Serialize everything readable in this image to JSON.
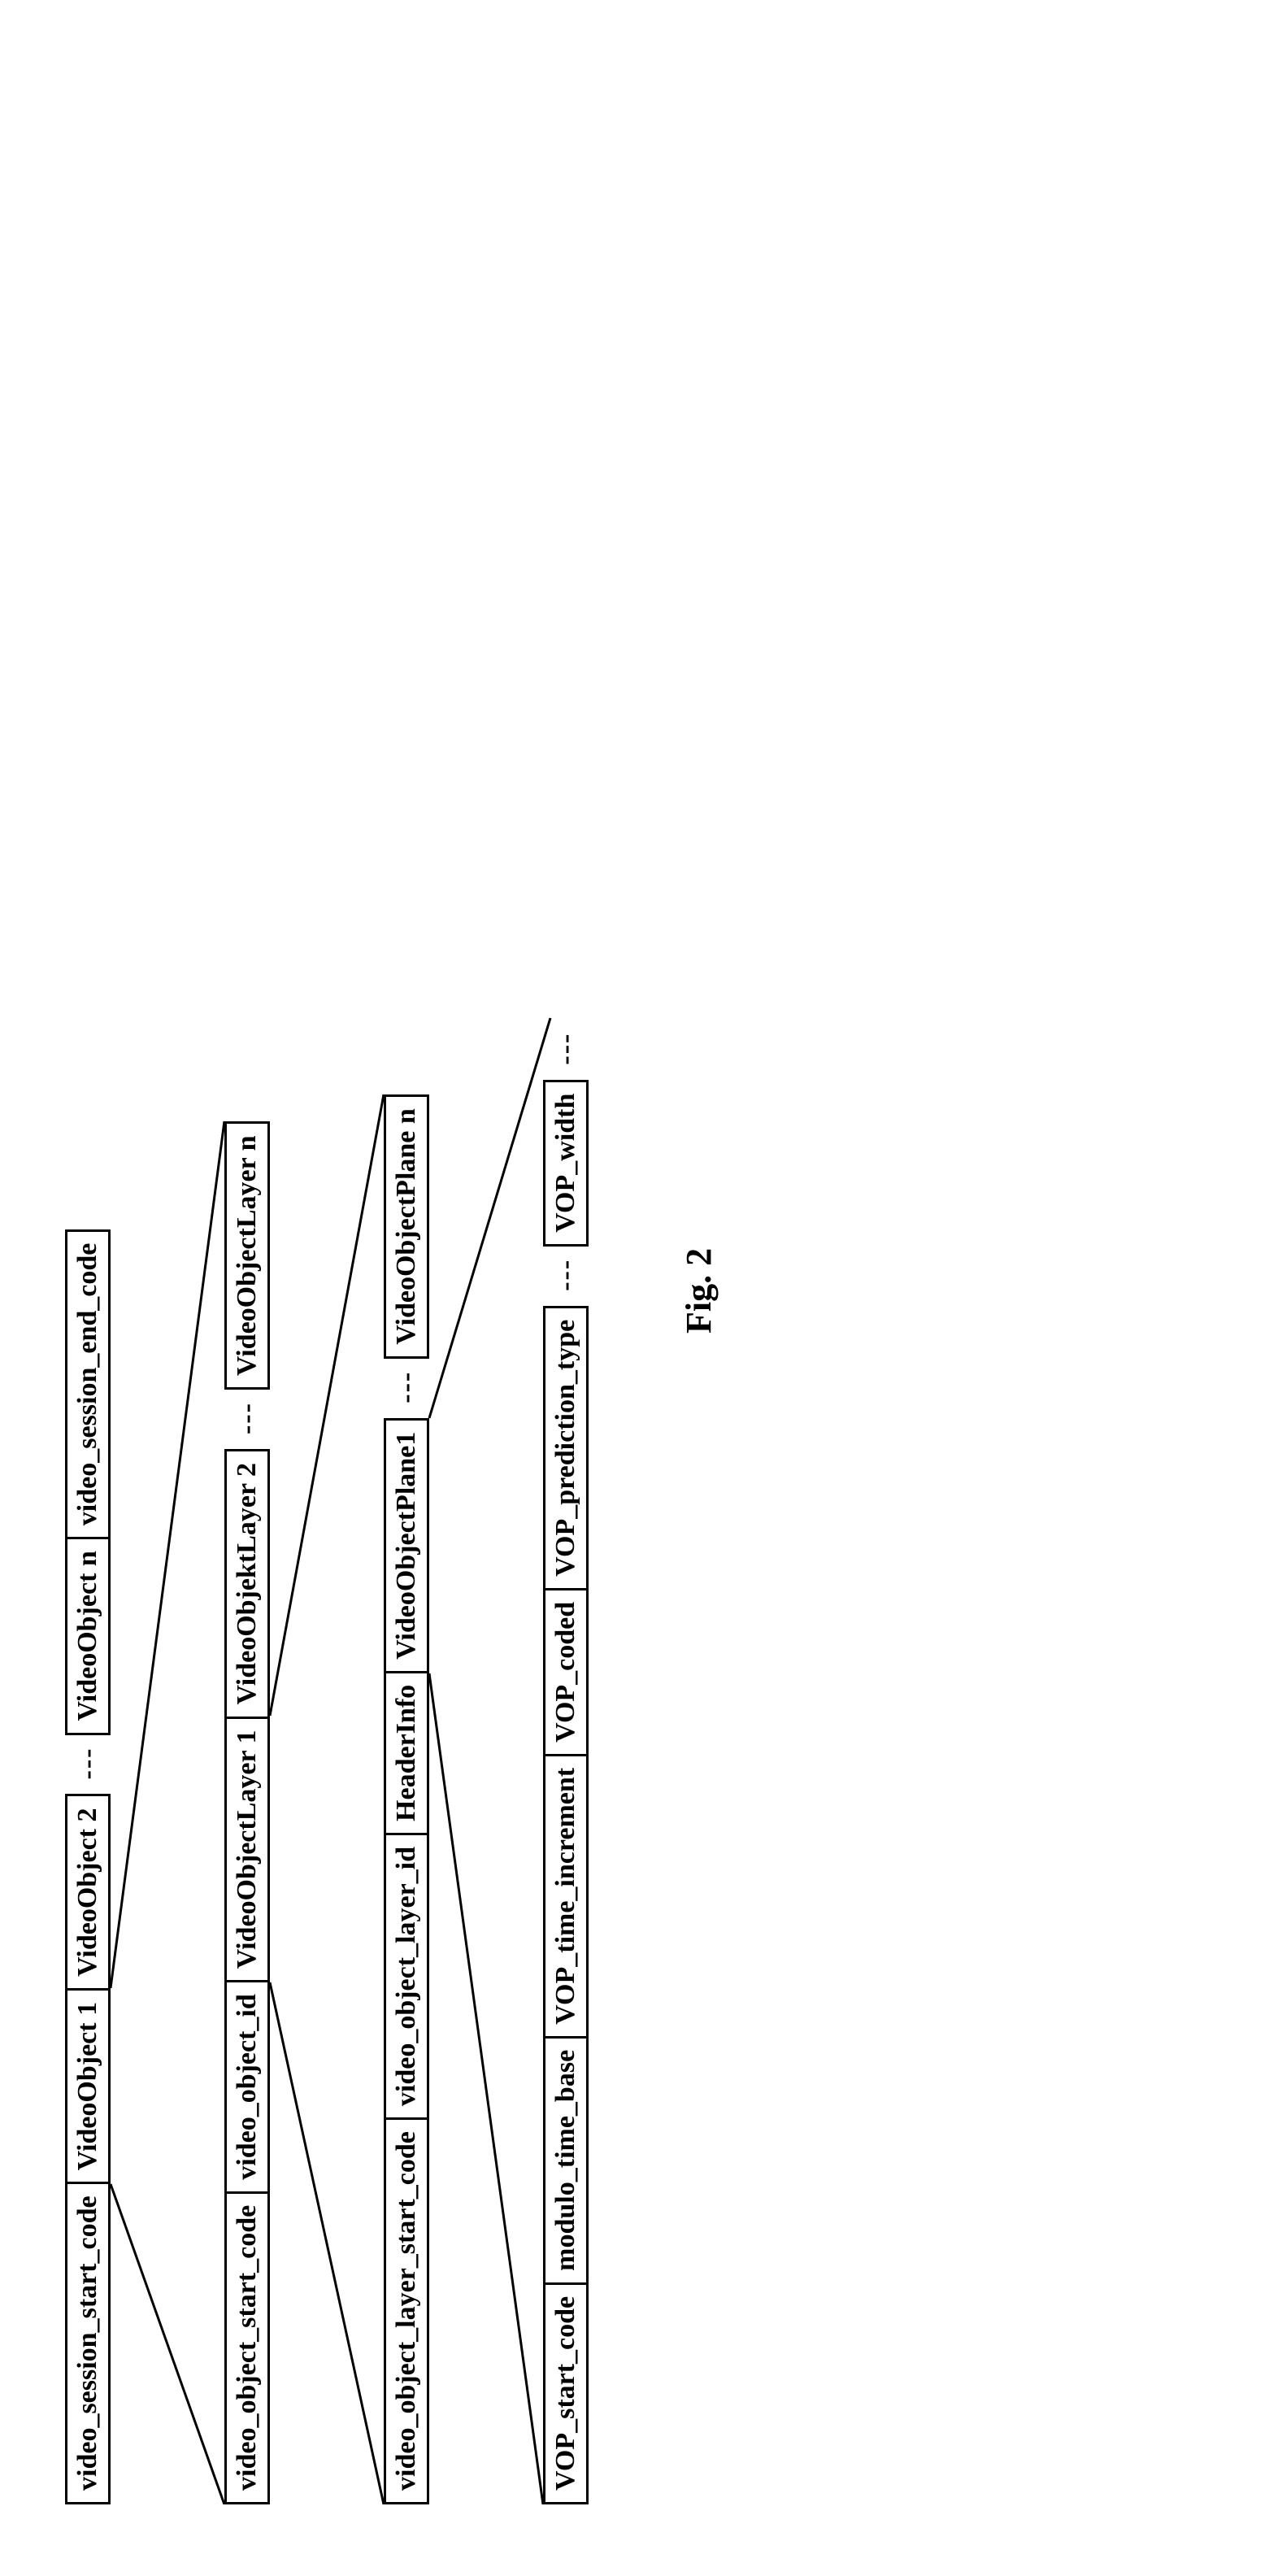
{
  "figure_label": "Fig. 2",
  "rows": [
    {
      "cells": [
        {
          "t": "video_session_start_code"
        },
        {
          "t": "VideoObject 1"
        },
        {
          "t": "VideoObject 2"
        },
        {
          "t": "---",
          "dots": true
        },
        {
          "t": "VideoObject n"
        },
        {
          "t": "video_session_end_code"
        }
      ]
    },
    {
      "cells": [
        {
          "t": "video_object_start_code"
        },
        {
          "t": "video_object_id"
        },
        {
          "t": "VideoObjectLayer 1"
        },
        {
          "t": "VideoObjektLayer 2"
        },
        {
          "t": "---",
          "dots": true
        },
        {
          "t": "VideoObjectLayer n"
        }
      ]
    },
    {
      "cells": [
        {
          "t": "video_object_layer_start_code"
        },
        {
          "t": "video_object_layer_id"
        },
        {
          "t": "HeaderInfo"
        },
        {
          "t": "VideoObjectPlane1"
        },
        {
          "t": "---",
          "dots": true
        },
        {
          "t": "VideoObjectPlane n"
        }
      ]
    },
    {
      "cells": [
        {
          "t": "VOP_start_code"
        },
        {
          "t": "modulo_time_base"
        },
        {
          "t": "VOP_time_increment"
        },
        {
          "t": "VOP_coded"
        },
        {
          "t": "VOP_prediction_type"
        },
        {
          "t": "---",
          "dots": true
        },
        {
          "t": "VOP_width"
        },
        {
          "t": "---",
          "dots": true
        }
      ]
    }
  ],
  "style": {
    "border_color": "#000000",
    "border_width": 3,
    "font_family": "Times New Roman, serif",
    "font_weight": "bold",
    "cell_fontsize": 34,
    "fig_fontsize": 44,
    "background": "#ffffff",
    "row_gap": 140,
    "connectors": [
      {
        "from_row": 0,
        "from_cell_index": 1,
        "to_row": 1
      },
      {
        "from_row": 1,
        "from_cell_index": 2,
        "to_row": 2
      },
      {
        "from_row": 2,
        "from_cell_index": 3,
        "to_row": 3
      }
    ]
  }
}
